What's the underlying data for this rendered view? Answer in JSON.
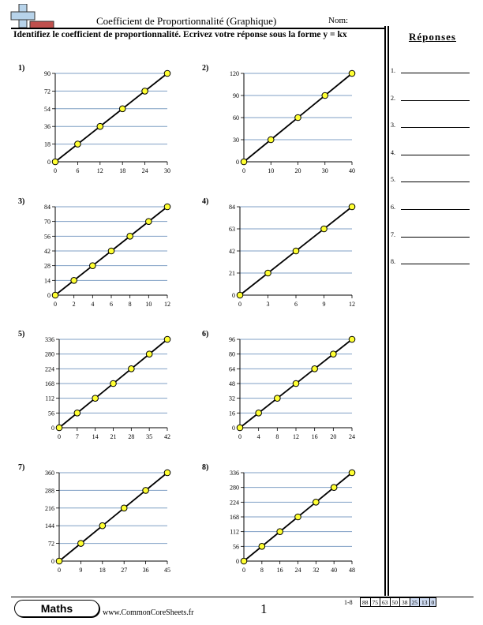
{
  "header": {
    "title": "Coefficient de Proportionnalité (Graphique)",
    "name_label": "Nom:",
    "logo_icon": "plus-minus-logo-icon"
  },
  "instructions": "Identifiez le coefficient de proportionnalité. Ecrivez votre réponse sous la forme y = kx",
  "answers": {
    "header": "Réponses",
    "items": [
      "1.",
      "2.",
      "3.",
      "4.",
      "5.",
      "6.",
      "7.",
      "8."
    ]
  },
  "problems": [
    {
      "label": "1)",
      "x_ticks": [
        "0",
        "6",
        "12",
        "18",
        "24",
        "30"
      ],
      "y_ticks": [
        "0",
        "18",
        "36",
        "54",
        "72",
        "90"
      ]
    },
    {
      "label": "2)",
      "x_ticks": [
        "0",
        "10",
        "20",
        "30",
        "40"
      ],
      "y_ticks": [
        "0",
        "30",
        "60",
        "90",
        "120"
      ]
    },
    {
      "label": "3)",
      "x_ticks": [
        "0",
        "2",
        "4",
        "6",
        "8",
        "10",
        "12"
      ],
      "y_ticks": [
        "0",
        "14",
        "28",
        "42",
        "56",
        "70",
        "84"
      ]
    },
    {
      "label": "4)",
      "x_ticks": [
        "0",
        "3",
        "6",
        "9",
        "12"
      ],
      "y_ticks": [
        "0",
        "21",
        "42",
        "63",
        "84"
      ]
    },
    {
      "label": "5)",
      "x_ticks": [
        "0",
        "7",
        "14",
        "21",
        "28",
        "35",
        "42"
      ],
      "y_ticks": [
        "0",
        "56",
        "112",
        "168",
        "224",
        "280",
        "336"
      ]
    },
    {
      "label": "6)",
      "x_ticks": [
        "0",
        "4",
        "8",
        "12",
        "16",
        "20",
        "24"
      ],
      "y_ticks": [
        "0",
        "16",
        "32",
        "48",
        "64",
        "80",
        "96"
      ]
    },
    {
      "label": "7)",
      "x_ticks": [
        "0",
        "9",
        "18",
        "27",
        "36",
        "45"
      ],
      "y_ticks": [
        "0",
        "72",
        "144",
        "216",
        "288",
        "360"
      ]
    },
    {
      "label": "8)",
      "x_ticks": [
        "0",
        "8",
        "16",
        "24",
        "32",
        "40",
        "48"
      ],
      "y_ticks": [
        "0",
        "56",
        "112",
        "168",
        "224",
        "280",
        "336"
      ]
    }
  ],
  "chart_data": [
    {
      "type": "scatter",
      "x": [
        0,
        6,
        12,
        18,
        24,
        30
      ],
      "y": [
        0,
        18,
        36,
        54,
        72,
        90
      ],
      "xlim": [
        0,
        30
      ],
      "ylim": [
        0,
        90
      ],
      "grid": true
    },
    {
      "type": "scatter",
      "x": [
        0,
        10,
        20,
        30,
        40
      ],
      "y": [
        0,
        30,
        60,
        90,
        120
      ],
      "xlim": [
        0,
        40
      ],
      "ylim": [
        0,
        120
      ],
      "grid": true
    },
    {
      "type": "scatter",
      "x": [
        0,
        2,
        4,
        6,
        8,
        10,
        12
      ],
      "y": [
        0,
        14,
        28,
        42,
        56,
        70,
        84
      ],
      "xlim": [
        0,
        12
      ],
      "ylim": [
        0,
        84
      ],
      "grid": true
    },
    {
      "type": "scatter",
      "x": [
        0,
        3,
        6,
        9,
        12
      ],
      "y": [
        0,
        21,
        42,
        63,
        84
      ],
      "xlim": [
        0,
        12
      ],
      "ylim": [
        0,
        84
      ],
      "grid": true
    },
    {
      "type": "scatter",
      "x": [
        0,
        7,
        14,
        21,
        28,
        35,
        42
      ],
      "y": [
        0,
        56,
        112,
        168,
        224,
        280,
        336
      ],
      "xlim": [
        0,
        42
      ],
      "ylim": [
        0,
        336
      ],
      "grid": true
    },
    {
      "type": "scatter",
      "x": [
        0,
        4,
        8,
        12,
        16,
        20,
        24
      ],
      "y": [
        0,
        16,
        32,
        48,
        64,
        80,
        96
      ],
      "xlim": [
        0,
        24
      ],
      "ylim": [
        0,
        96
      ],
      "grid": true
    },
    {
      "type": "scatter",
      "x": [
        0,
        9,
        18,
        27,
        36,
        45
      ],
      "y": [
        0,
        72,
        144,
        216,
        288,
        360
      ],
      "xlim": [
        0,
        45
      ],
      "ylim": [
        0,
        360
      ],
      "grid": true
    },
    {
      "type": "scatter",
      "x": [
        0,
        8,
        16,
        24,
        32,
        40,
        48
      ],
      "y": [
        0,
        56,
        112,
        168,
        224,
        280,
        336
      ],
      "xlim": [
        0,
        48
      ],
      "ylim": [
        0,
        336
      ],
      "grid": true
    }
  ],
  "colors": {
    "grid": "#7f9fc4",
    "point_fill": "#ffff33",
    "score_highlight": "#cfdcf2"
  },
  "footer": {
    "badge": "Maths",
    "site": "www.CommonCoreSheets.fr",
    "page": "1",
    "score_label": "1-8",
    "scores": [
      "88",
      "75",
      "63",
      "50",
      "38",
      "25",
      "13",
      "0"
    ]
  }
}
